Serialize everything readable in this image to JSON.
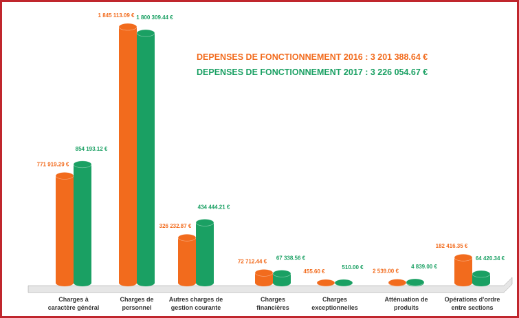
{
  "chart_data": {
    "type": "bar",
    "categories": [
      "Charges à caractère général",
      "Charges de personnel",
      "Autres charges de gestion courante",
      "Charges financières",
      "Charges exceptionnelles",
      "Atténuation de produits",
      "Opérations d'ordre entre sections"
    ],
    "series": [
      {
        "name": "DEPENSES DE FONCTIONNEMENT 2016 : 3 201 388.64 €",
        "color": "#f26b1d",
        "values": [
          771919.29,
          1845113.09,
          326232.87,
          72712.44,
          455.6,
          2539.0,
          182416.35
        ],
        "value_labels": [
          "771 919.29 €",
          "1 845 113.09 €",
          "326 232.87 €",
          "72 712.44 €",
          "455.60 €",
          "2 539.00 €",
          "182 416.35 €"
        ]
      },
      {
        "name": "DEPENSES DE FONCTIONNEMENT 2017 : 3 226 054.67 €",
        "color": "#1aa063",
        "values": [
          854193.12,
          1800309.44,
          434444.21,
          67338.56,
          510.0,
          4839.0,
          64420.34
        ],
        "value_labels": [
          "854 193.12 €",
          "1 800 309.44 €",
          "434 444.21 €",
          "67 338.56 €",
          "510.00 €",
          "4 839.00 €",
          "64 420.34 €"
        ]
      }
    ]
  }
}
